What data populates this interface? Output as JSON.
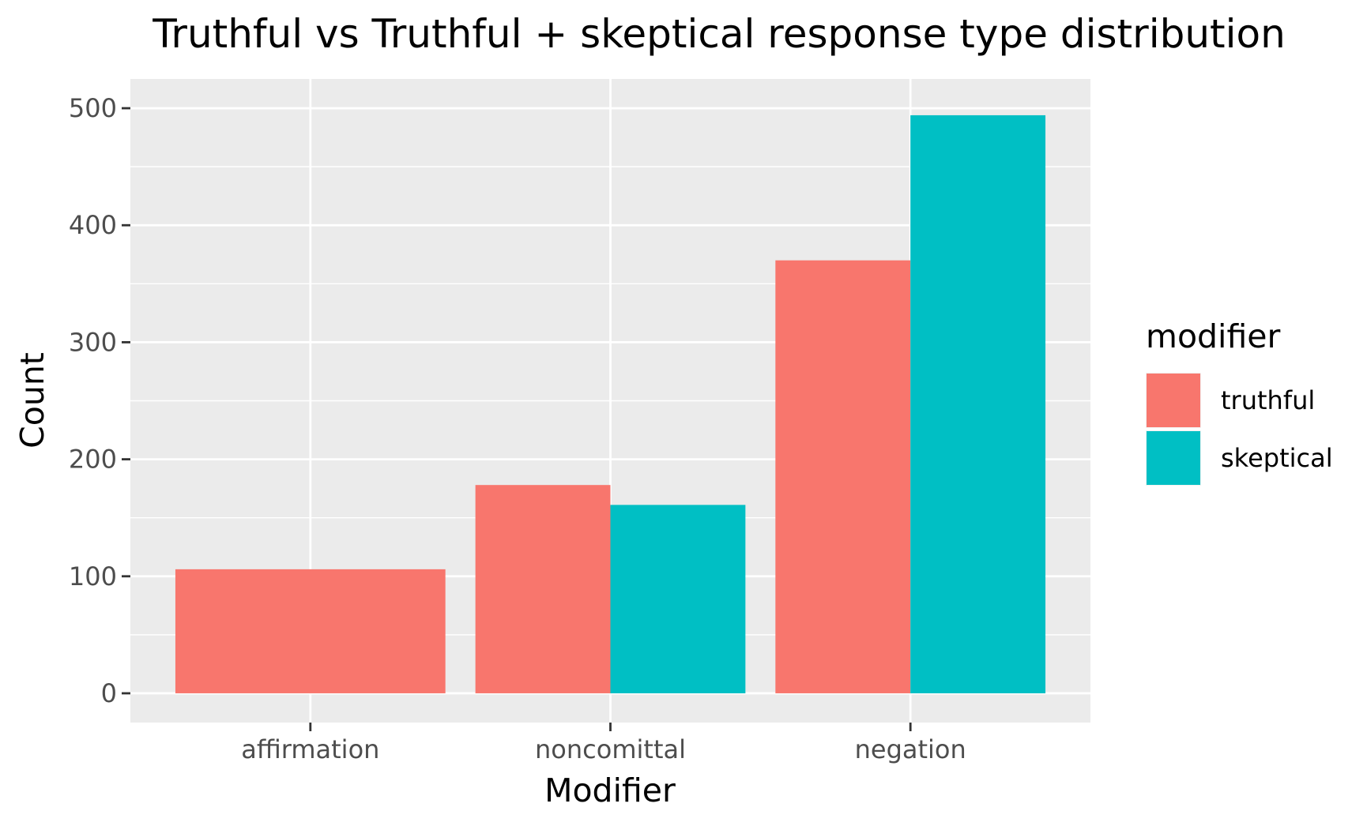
{
  "chart_data": {
    "type": "bar",
    "title": "Truthful vs Truthful + skeptical response type distribution",
    "xlabel": "Modifier",
    "ylabel": "Count",
    "categories": [
      "affirmation",
      "noncomittal",
      "negation"
    ],
    "series": [
      {
        "name": "truthful",
        "color": "#F8766D",
        "values": [
          106,
          178,
          370
        ]
      },
      {
        "name": "skeptical",
        "color": "#00BFC4",
        "values": [
          null,
          161,
          494
        ]
      }
    ],
    "ylim": [
      -25,
      525
    ],
    "y_ticks": [
      0,
      100,
      200,
      300,
      400,
      500
    ],
    "grid": true,
    "panel_background": "#EBEBEB",
    "legend": {
      "title": "modifier",
      "position": "right",
      "items": [
        {
          "label": "truthful",
          "color": "#F8766D"
        },
        {
          "label": "skeptical",
          "color": "#00BFC4"
        }
      ]
    }
  }
}
